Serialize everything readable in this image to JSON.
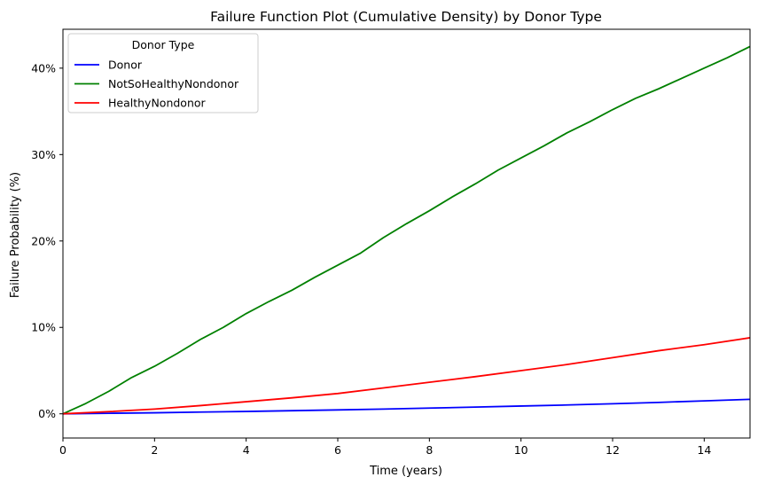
{
  "chart_data": {
    "type": "line",
    "title": "Failure Function Plot (Cumulative Density) by Donor Type",
    "xlabel": "Time (years)",
    "ylabel": "Failure Probability (%)",
    "xlim": [
      0,
      15
    ],
    "ylim": [
      -2.8,
      44.5
    ],
    "x_ticks": [
      0,
      2,
      4,
      6,
      8,
      10,
      12,
      14
    ],
    "y_ticks": [
      0,
      10,
      20,
      30,
      40
    ],
    "y_tick_labels": [
      "0%",
      "10%",
      "20%",
      "30%",
      "40%"
    ],
    "grid": false,
    "legend": {
      "title": "Donor Type",
      "placement": "top-left"
    },
    "series": [
      {
        "name": "Donor",
        "color": "#0000ff",
        "x": [
          0,
          1,
          2,
          3,
          4,
          5,
          6,
          7,
          8,
          9,
          10,
          11,
          12,
          13,
          14,
          15
        ],
        "y": [
          0,
          0.06,
          0.12,
          0.2,
          0.27,
          0.36,
          0.45,
          0.55,
          0.66,
          0.78,
          0.9,
          1.02,
          1.16,
          1.32,
          1.5,
          1.68
        ]
      },
      {
        "name": "NotSoHealthyNondonor",
        "color": "#008000",
        "x": [
          0,
          0.5,
          1,
          1.5,
          2,
          2.5,
          3,
          3.5,
          4,
          4.5,
          5,
          5.5,
          6,
          6.5,
          7,
          7.5,
          8,
          8.5,
          9,
          9.5,
          10,
          10.5,
          11,
          11.5,
          12,
          12.5,
          13,
          13.5,
          14,
          14.5,
          15
        ],
        "y": [
          0,
          1.2,
          2.6,
          4.2,
          5.5,
          7,
          8.6,
          10,
          11.6,
          13,
          14.3,
          15.8,
          17.2,
          18.6,
          20.4,
          22,
          23.5,
          25.1,
          26.6,
          28.2,
          29.6,
          31,
          32.5,
          33.8,
          35.2,
          36.5,
          37.6,
          38.8,
          40,
          41.2,
          42.5
        ]
      },
      {
        "name": "HealthyNondonor",
        "color": "#ff0000",
        "x": [
          0,
          1,
          2,
          3,
          4,
          5,
          6,
          7,
          8,
          9,
          10,
          11,
          12,
          13,
          14,
          15
        ],
        "y": [
          0,
          0.25,
          0.55,
          0.95,
          1.4,
          1.85,
          2.35,
          3.0,
          3.65,
          4.3,
          5.0,
          5.7,
          6.5,
          7.3,
          8.0,
          8.8
        ]
      }
    ]
  }
}
